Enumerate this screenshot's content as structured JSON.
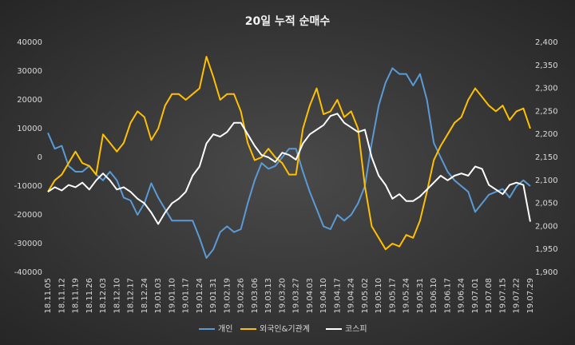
{
  "chart_data": {
    "type": "line",
    "title": "20일 누적 순매수",
    "categories": [
      "18.11.05",
      null,
      "18.11.12",
      null,
      "18.11.19",
      null,
      "18.11.26",
      null,
      "18.12.03",
      null,
      "18.12.10",
      null,
      "18.12.17",
      null,
      "18.12.24",
      null,
      "19.01.03",
      null,
      "19.01.10",
      null,
      "19.01.17",
      null,
      "19.01.24",
      null,
      "19.01.31",
      null,
      "19.02.19",
      null,
      "19.02.26",
      null,
      "19.03.06",
      null,
      "19.03.13",
      null,
      "19.03.20",
      null,
      "19.03.27",
      null,
      "19.04.03",
      null,
      "19.04.10",
      null,
      "19.04.17",
      null,
      "19.04.24",
      null,
      "19.05.02",
      null,
      "19.05.10",
      null,
      "19.05.17",
      null,
      "19.05.24",
      null,
      "19.05.31",
      null,
      "19.06.10",
      null,
      "19.06.17",
      null,
      "19.06.24",
      null,
      "19.07.01",
      null,
      "19.07.08",
      null,
      "19.07.15",
      null,
      "19.07.22",
      null,
      "19.07.29"
    ],
    "series": [
      {
        "name": "개인",
        "color": "#5b9bd5",
        "values": [
          8500,
          3000,
          4000,
          -3000,
          -5000,
          -5000,
          -3000,
          -6000,
          -8000,
          -5000,
          -8000,
          -14000,
          -15000,
          -20000,
          -16000,
          -9000,
          -14000,
          -18000,
          -22000,
          -22000,
          -22000,
          -22000,
          -28000,
          -35000,
          -32000,
          -26000,
          -24000,
          -26000,
          -25000,
          -16000,
          -8000,
          -2000,
          -4000,
          -3000,
          0,
          3000,
          3000,
          -5000,
          -12000,
          -18000,
          -24000,
          -25000,
          -20000,
          -22000,
          -20000,
          -16000,
          -10000,
          5000,
          18000,
          26000,
          31000,
          29000,
          29000,
          25000,
          29000,
          20000,
          5000,
          0,
          -5000,
          -8000,
          -10000,
          -12000,
          -19000,
          -16000,
          -13000,
          -12000,
          -11000,
          -14000,
          -10000,
          -8000,
          -10000
        ]
      },
      {
        "name": "외국인&기관계",
        "color": "#ffc000",
        "values": [
          -12000,
          -8000,
          -6000,
          -2000,
          2000,
          -2000,
          -3000,
          -6000,
          8000,
          5000,
          2000,
          5000,
          12000,
          16000,
          14000,
          6000,
          10000,
          18000,
          22000,
          22000,
          20000,
          22000,
          24000,
          35000,
          28000,
          20000,
          22000,
          22000,
          16000,
          5000,
          -1000,
          0,
          3000,
          0,
          -2000,
          -6000,
          -6000,
          10000,
          18000,
          24000,
          15000,
          16000,
          20000,
          14000,
          16000,
          10000,
          -10000,
          -24000,
          -28000,
          -32000,
          -30000,
          -31000,
          -27000,
          -28000,
          -22000,
          -12000,
          -1000,
          4000,
          8000,
          12000,
          14000,
          20000,
          24000,
          21000,
          18000,
          16000,
          18000,
          13000,
          16000,
          17000,
          10000
        ]
      },
      {
        "name": "코스피",
        "color": "#ffffff",
        "axis": "y2",
        "values": [
          2075,
          2085,
          2078,
          2090,
          2085,
          2095,
          2080,
          2100,
          2115,
          2100,
          2080,
          2085,
          2075,
          2060,
          2050,
          2030,
          2005,
          2030,
          2050,
          2060,
          2075,
          2110,
          2130,
          2180,
          2200,
          2195,
          2205,
          2225,
          2225,
          2200,
          2175,
          2155,
          2150,
          2140,
          2160,
          2155,
          2145,
          2180,
          2200,
          2210,
          2220,
          2240,
          2245,
          2225,
          2215,
          2205,
          2210,
          2150,
          2110,
          2090,
          2060,
          2070,
          2055,
          2055,
          2065,
          2080,
          2095,
          2110,
          2100,
          2110,
          2115,
          2110,
          2130,
          2125,
          2090,
          2080,
          2070,
          2090,
          2095,
          2090,
          2010
        ]
      }
    ],
    "ylim": [
      -40000,
      40000
    ],
    "yticks": [
      -40000,
      -30000,
      -20000,
      -10000,
      0,
      10000,
      20000,
      30000,
      40000
    ],
    "y2lim": [
      1900,
      2400
    ],
    "y2ticks": [
      {
        "value": 1900,
        "label": "1,900"
      },
      {
        "value": 1950,
        "label": "1,950"
      },
      {
        "value": 2000,
        "label": "2,000"
      },
      {
        "value": 2050,
        "label": "2,050"
      },
      {
        "value": 2100,
        "label": "2,100"
      },
      {
        "value": 2150,
        "label": "2,150"
      },
      {
        "value": 2200,
        "label": "2,200"
      },
      {
        "value": 2250,
        "label": "2,250"
      },
      {
        "value": 2300,
        "label": "2,300"
      },
      {
        "value": 2350,
        "label": "2,350"
      },
      {
        "value": 2400,
        "label": "2,400"
      }
    ],
    "legend": "bottom"
  }
}
